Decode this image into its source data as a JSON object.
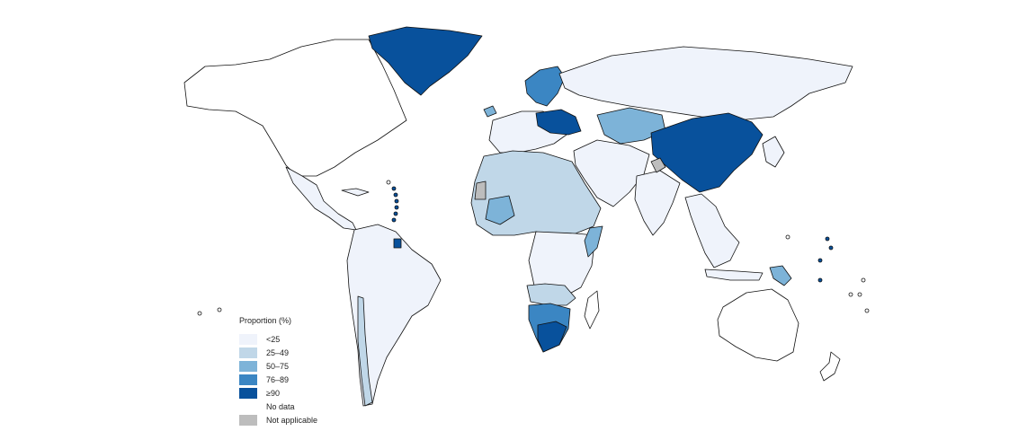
{
  "legend": {
    "title": "Proportion (%)",
    "items": [
      {
        "label": "<25",
        "color": "#eff3fb"
      },
      {
        "label": "25–49",
        "color": "#c0d7e8"
      },
      {
        "label": "50–75",
        "color": "#7db3d8"
      },
      {
        "label": "76–89",
        "color": "#3b86c3"
      },
      {
        "label": "≥90",
        "color": "#08519c"
      },
      {
        "label": "No data",
        "color": "#ffffff"
      },
      {
        "label": "Not applicable",
        "color": "#bdbdbd"
      }
    ]
  }
}
